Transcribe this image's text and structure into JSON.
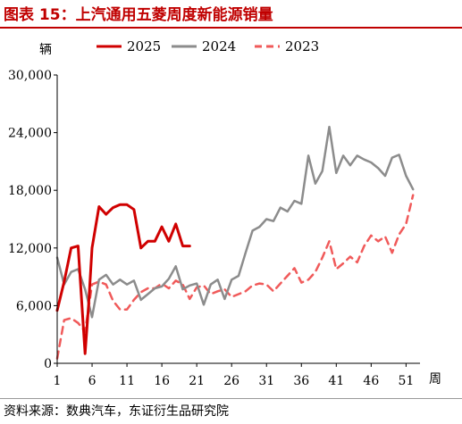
{
  "title": "图表 15：上汽通用五菱周度新能源销量",
  "source": "资料来源：数典汽车，东证衍生品研究院",
  "chart_data": {
    "type": "line",
    "ylabel": "辆",
    "xlabel": "周",
    "ylim": [
      0,
      30000
    ],
    "yticks": [
      0,
      6000,
      12000,
      18000,
      24000,
      30000
    ],
    "ytick_labels": [
      "0",
      "6,000",
      "12,000",
      "18,000",
      "24,000",
      "30,000"
    ],
    "xlim": [
      1,
      53
    ],
    "xticks": [
      1,
      6,
      11,
      16,
      21,
      26,
      31,
      36,
      41,
      46,
      51
    ],
    "legend_position": "top",
    "series": [
      {
        "name": "2025",
        "color": "#d00000",
        "dash": "solid",
        "x": [
          1,
          2,
          3,
          4,
          5,
          5.5,
          6,
          7,
          8,
          9,
          10,
          11,
          12,
          13,
          14,
          15,
          16,
          17,
          18,
          19,
          20
        ],
        "y": [
          5500,
          8500,
          12000,
          12200,
          1000,
          6000,
          12000,
          16300,
          15500,
          16200,
          16500,
          16500,
          16000,
          12000,
          12700,
          12700,
          14200,
          12700,
          14500,
          12200,
          12200
        ]
      },
      {
        "name": "2024",
        "color": "#8c8c8c",
        "dash": "solid",
        "x": [
          1,
          2,
          3,
          4,
          5,
          6,
          7,
          8,
          9,
          10,
          11,
          12,
          13,
          14,
          15,
          16,
          17,
          18,
          19,
          20,
          21,
          22,
          23,
          24,
          25,
          26,
          27,
          28,
          29,
          30,
          31,
          32,
          33,
          34,
          35,
          36,
          37,
          38,
          39,
          40,
          41,
          42,
          43,
          44,
          45,
          46,
          47,
          48,
          49,
          50,
          51,
          52
        ],
        "y": [
          11000,
          8200,
          9500,
          9800,
          7700,
          4800,
          8700,
          9200,
          8200,
          8700,
          8200,
          8600,
          6600,
          7200,
          7800,
          8000,
          8800,
          10100,
          7700,
          8100,
          8300,
          6100,
          8200,
          8700,
          6700,
          8700,
          9100,
          11500,
          13800,
          14200,
          15000,
          14800,
          16200,
          15800,
          16900,
          16600,
          21600,
          18700,
          20000,
          24600,
          19800,
          21600,
          20600,
          21600,
          21200,
          20900,
          20300,
          19500,
          21400,
          21700,
          19500,
          18100
        ]
      },
      {
        "name": "2023",
        "color": "#f05a5a",
        "dash": "dashed",
        "x": [
          1,
          2,
          3,
          4,
          5,
          6,
          7,
          8,
          9,
          10,
          11,
          12,
          13,
          14,
          15,
          16,
          17,
          18,
          19,
          20,
          21,
          22,
          23,
          24,
          25,
          26,
          27,
          28,
          29,
          30,
          31,
          32,
          33,
          34,
          35,
          36,
          37,
          38,
          39,
          40,
          41,
          42,
          43,
          44,
          45,
          46,
          47,
          48,
          49,
          50,
          51,
          52
        ],
        "y": [
          500,
          4500,
          4700,
          4200,
          3300,
          8200,
          8500,
          8200,
          6500,
          5600,
          5600,
          6600,
          7400,
          7800,
          7800,
          8300,
          7800,
          8600,
          8200,
          6700,
          7900,
          8100,
          7200,
          7500,
          7700,
          6900,
          7200,
          7500,
          8100,
          8300,
          8200,
          7500,
          8300,
          9100,
          9900,
          8400,
          8700,
          9500,
          11000,
          12700,
          9800,
          10400,
          11100,
          10500,
          12200,
          13300,
          12700,
          13200,
          11500,
          13400,
          14500,
          17500
        ]
      }
    ]
  }
}
